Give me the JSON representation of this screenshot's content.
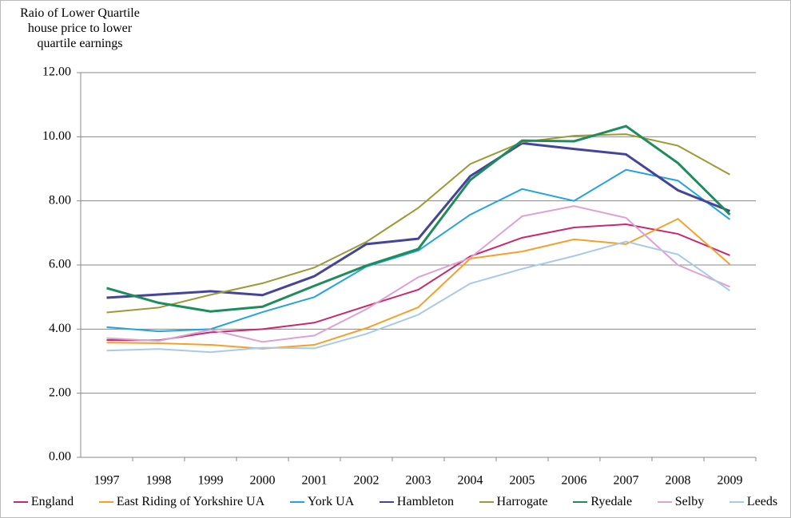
{
  "chart_data": {
    "type": "line",
    "y_label": "Raio of Lower Quartile house price to lower quartile earnings",
    "categories": [
      "1997",
      "1998",
      "1999",
      "2000",
      "2001",
      "2002",
      "2003",
      "2004",
      "2005",
      "2006",
      "2007",
      "2008",
      "2009"
    ],
    "series": [
      {
        "name": "England",
        "color": "#c8286e",
        "values": [
          3.66,
          3.65,
          3.9,
          4.0,
          4.2,
          4.72,
          5.23,
          6.27,
          6.85,
          7.17,
          7.27,
          6.97,
          6.3
        ]
      },
      {
        "name": "East Riding of Yorkshire UA",
        "color": "#f5a02a",
        "values": [
          3.58,
          3.56,
          3.51,
          3.39,
          3.51,
          4.03,
          4.68,
          6.2,
          6.42,
          6.8,
          6.65,
          7.44,
          6.02
        ]
      },
      {
        "name": "York UA",
        "color": "#24a3dc",
        "values": [
          4.06,
          3.93,
          4.0,
          4.53,
          5.0,
          5.95,
          6.45,
          7.57,
          8.37,
          8.0,
          8.97,
          8.63,
          7.42
        ]
      },
      {
        "name": "Hambleton",
        "color": "#44449a",
        "values": [
          4.98,
          5.08,
          5.18,
          5.06,
          5.65,
          6.65,
          6.82,
          8.77,
          9.8,
          9.62,
          9.45,
          8.33,
          7.68
        ]
      },
      {
        "name": "Harrogate",
        "color": "#9a9a38",
        "values": [
          4.52,
          4.67,
          5.07,
          5.43,
          5.92,
          6.72,
          7.78,
          9.15,
          9.83,
          10.03,
          10.08,
          9.72,
          8.82
        ]
      },
      {
        "name": "Ryedale",
        "color": "#1f8c5c",
        "values": [
          5.28,
          4.82,
          4.55,
          4.7,
          5.35,
          5.98,
          6.5,
          8.65,
          9.88,
          9.86,
          10.33,
          9.18,
          7.57
        ]
      },
      {
        "name": "Selby",
        "color": "#dca2d2",
        "values": [
          3.72,
          3.63,
          3.98,
          3.6,
          3.8,
          4.62,
          5.62,
          6.22,
          7.52,
          7.84,
          7.47,
          6.0,
          5.32
        ]
      },
      {
        "name": "Leeds",
        "color": "#a9c9e6",
        "values": [
          3.33,
          3.38,
          3.28,
          3.42,
          3.4,
          3.85,
          4.45,
          5.42,
          5.88,
          6.28,
          6.73,
          6.33,
          5.2
        ]
      }
    ],
    "ylim": [
      0,
      12
    ],
    "yticks": [
      {
        "value": 0,
        "label": "0.00"
      },
      {
        "value": 2,
        "label": "2.00"
      },
      {
        "value": 4,
        "label": "4.00"
      },
      {
        "value": 6,
        "label": "6.00"
      },
      {
        "value": 8,
        "label": "8.00"
      },
      {
        "value": 10,
        "label": "10.00"
      },
      {
        "value": 12,
        "label": "12.00"
      }
    ],
    "grid": true
  }
}
